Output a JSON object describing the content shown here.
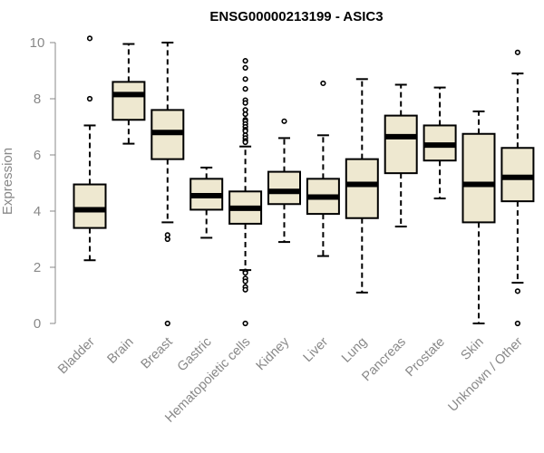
{
  "chart_data": {
    "type": "boxplot",
    "title": "ENSG00000213199 - ASIC3",
    "ylabel": "Expression",
    "xlabel": "",
    "ylim": [
      0,
      10
    ],
    "yticks": [
      0,
      2,
      4,
      6,
      8,
      10
    ],
    "grid": false,
    "legend": "none",
    "box_fill": "#EEE8D0",
    "box_stroke": "#000000",
    "categories": [
      "Bladder",
      "Brain",
      "Breast",
      "Gastric",
      "Hematopoietic cells",
      "Kidney",
      "Liver",
      "Lung",
      "Pancreas",
      "Prostate",
      "Skin",
      "Unknown / Other"
    ],
    "boxes": [
      {
        "category": "Bladder",
        "whisker_low": 2.25,
        "q1": 3.4,
        "median": 4.05,
        "q3": 4.95,
        "whisker_high": 7.05,
        "outliers": [
          8.0,
          10.15
        ]
      },
      {
        "category": "Brain",
        "whisker_low": 6.4,
        "q1": 7.25,
        "median": 8.15,
        "q3": 8.6,
        "whisker_high": 9.95,
        "outliers": []
      },
      {
        "category": "Breast",
        "whisker_low": 3.6,
        "q1": 5.85,
        "median": 6.8,
        "q3": 7.6,
        "whisker_high": 10.0,
        "outliers": [
          3.15,
          3.0,
          0.0
        ]
      },
      {
        "category": "Gastric",
        "whisker_low": 3.05,
        "q1": 4.05,
        "median": 4.55,
        "q3": 5.15,
        "whisker_high": 5.55,
        "outliers": []
      },
      {
        "category": "Hematopoietic cells",
        "whisker_low": 1.9,
        "q1": 3.55,
        "median": 4.1,
        "q3": 4.7,
        "whisker_high": 6.3,
        "outliers": [
          9.35,
          9.1,
          8.7,
          8.35,
          7.95,
          7.85,
          7.6,
          7.45,
          7.25,
          7.2,
          7.1,
          7.0,
          6.9,
          6.85,
          6.7,
          6.6,
          6.5,
          6.45,
          1.85,
          1.8,
          1.6,
          1.5,
          1.3,
          1.2,
          0.0
        ]
      },
      {
        "category": "Kidney",
        "whisker_low": 2.9,
        "q1": 4.25,
        "median": 4.7,
        "q3": 5.4,
        "whisker_high": 6.6,
        "outliers": [
          7.2
        ]
      },
      {
        "category": "Liver",
        "whisker_low": 2.4,
        "q1": 3.9,
        "median": 4.5,
        "q3": 5.15,
        "whisker_high": 6.7,
        "outliers": [
          8.55
        ]
      },
      {
        "category": "Lung",
        "whisker_low": 1.1,
        "q1": 3.75,
        "median": 4.95,
        "q3": 5.85,
        "whisker_high": 8.7,
        "outliers": []
      },
      {
        "category": "Pancreas",
        "whisker_low": 3.45,
        "q1": 5.35,
        "median": 6.65,
        "q3": 7.4,
        "whisker_high": 8.5,
        "outliers": []
      },
      {
        "category": "Prostate",
        "whisker_low": 4.45,
        "q1": 5.8,
        "median": 6.35,
        "q3": 7.05,
        "whisker_high": 8.4,
        "outliers": []
      },
      {
        "category": "Skin",
        "whisker_low": 0.0,
        "q1": 3.6,
        "median": 4.95,
        "q3": 6.75,
        "whisker_high": 7.55,
        "outliers": []
      },
      {
        "category": "Unknown / Other",
        "whisker_low": 1.45,
        "q1": 4.35,
        "median": 5.2,
        "q3": 6.25,
        "whisker_high": 8.9,
        "outliers": [
          9.65,
          1.15,
          0.0
        ]
      }
    ]
  }
}
